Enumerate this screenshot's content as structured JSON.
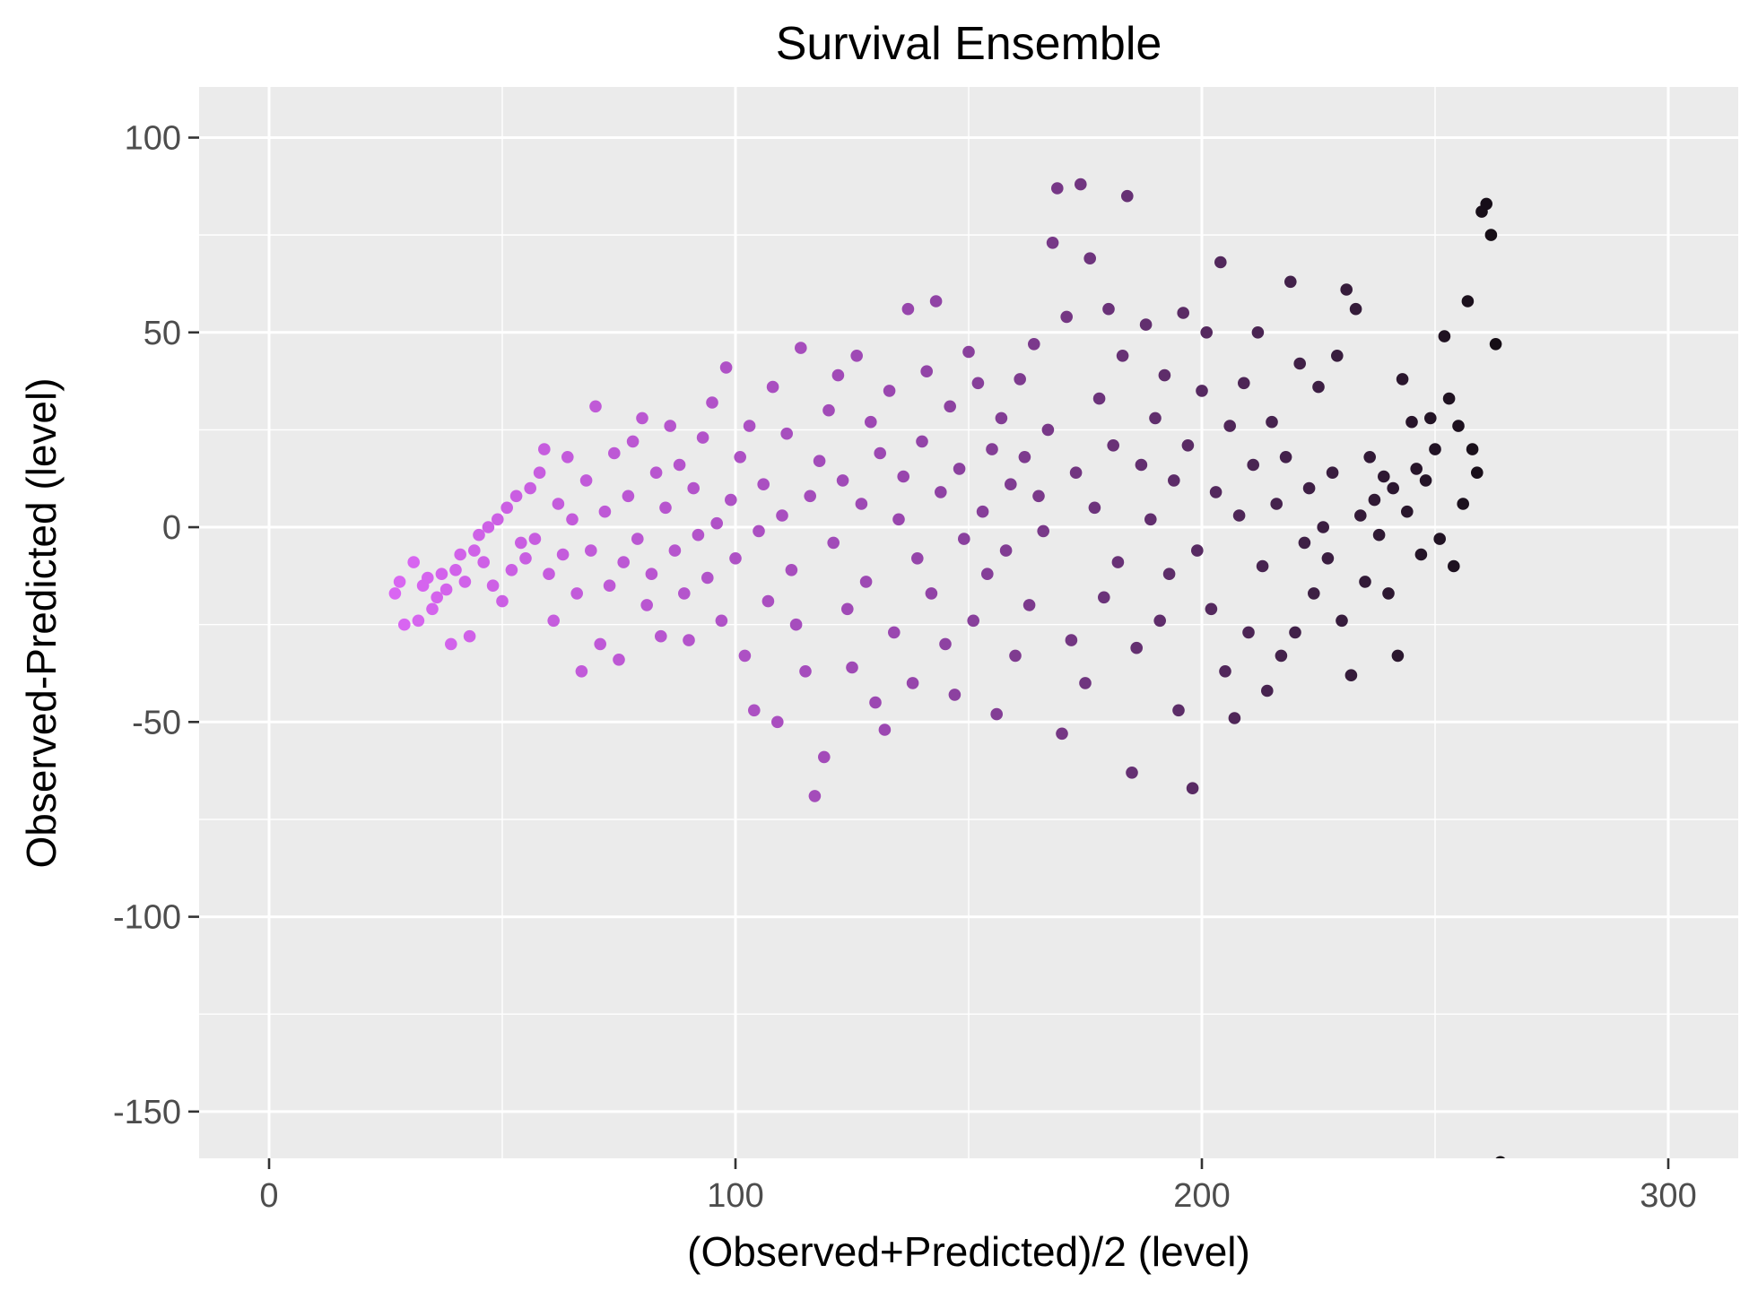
{
  "chart_data": {
    "type": "scatter",
    "title": "Survival Ensemble",
    "xlabel": "(Observed+Predicted)/2  (level)",
    "ylabel": "Observed-Predicted  (level)",
    "xlim": [
      -15,
      315
    ],
    "ylim": [
      -162,
      113
    ],
    "x_ticks": [
      0,
      100,
      200,
      300
    ],
    "y_ticks": [
      100,
      50,
      0,
      -50,
      -100,
      -150
    ],
    "x_tick_labels": [
      "0",
      "100",
      "200",
      "300"
    ],
    "y_tick_labels": [
      "100",
      "50",
      "0",
      "-50",
      "-100",
      "-150"
    ],
    "grid": true,
    "panel_background": "#ebebeb",
    "grid_color": "#ffffff",
    "color_gradient": {
      "low": "#d966f2",
      "mid": "#9a47b0",
      "high": "#140d14"
    },
    "series": [
      {
        "name": "points",
        "points": [
          [
            27,
            -17
          ],
          [
            28,
            -14
          ],
          [
            29,
            -25
          ],
          [
            31,
            -9
          ],
          [
            32,
            -24
          ],
          [
            33,
            -15
          ],
          [
            34,
            -13
          ],
          [
            35,
            -21
          ],
          [
            36,
            -18
          ],
          [
            37,
            -12
          ],
          [
            38,
            -16
          ],
          [
            39,
            -30
          ],
          [
            40,
            -11
          ],
          [
            41,
            -7
          ],
          [
            42,
            -14
          ],
          [
            43,
            -28
          ],
          [
            44,
            -6
          ],
          [
            45,
            -2
          ],
          [
            46,
            -9
          ],
          [
            47,
            0
          ],
          [
            48,
            -15
          ],
          [
            49,
            2
          ],
          [
            50,
            -19
          ],
          [
            51,
            5
          ],
          [
            52,
            -11
          ],
          [
            53,
            8
          ],
          [
            54,
            -4
          ],
          [
            55,
            -8
          ],
          [
            56,
            10
          ],
          [
            57,
            -3
          ],
          [
            58,
            14
          ],
          [
            59,
            20
          ],
          [
            60,
            -12
          ],
          [
            61,
            -24
          ],
          [
            62,
            6
          ],
          [
            63,
            -7
          ],
          [
            64,
            18
          ],
          [
            65,
            2
          ],
          [
            66,
            -17
          ],
          [
            67,
            -37
          ],
          [
            68,
            12
          ],
          [
            69,
            -6
          ],
          [
            70,
            31
          ],
          [
            71,
            -30
          ],
          [
            72,
            4
          ],
          [
            73,
            -15
          ],
          [
            74,
            19
          ],
          [
            75,
            -34
          ],
          [
            76,
            -9
          ],
          [
            77,
            8
          ],
          [
            78,
            22
          ],
          [
            79,
            -3
          ],
          [
            80,
            28
          ],
          [
            81,
            -20
          ],
          [
            82,
            -12
          ],
          [
            83,
            14
          ],
          [
            84,
            -28
          ],
          [
            85,
            5
          ],
          [
            86,
            26
          ],
          [
            87,
            -6
          ],
          [
            88,
            16
          ],
          [
            89,
            -17
          ],
          [
            90,
            -29
          ],
          [
            91,
            10
          ],
          [
            92,
            -2
          ],
          [
            93,
            23
          ],
          [
            94,
            -13
          ],
          [
            95,
            32
          ],
          [
            96,
            1
          ],
          [
            97,
            -24
          ],
          [
            98,
            41
          ],
          [
            99,
            7
          ],
          [
            100,
            -8
          ],
          [
            101,
            18
          ],
          [
            102,
            -33
          ],
          [
            103,
            26
          ],
          [
            104,
            -47
          ],
          [
            105,
            -1
          ],
          [
            106,
            11
          ],
          [
            107,
            -19
          ],
          [
            108,
            36
          ],
          [
            109,
            -50
          ],
          [
            110,
            3
          ],
          [
            111,
            24
          ],
          [
            112,
            -11
          ],
          [
            113,
            -25
          ],
          [
            114,
            46
          ],
          [
            115,
            -37
          ],
          [
            116,
            8
          ],
          [
            117,
            -69
          ],
          [
            118,
            17
          ],
          [
            119,
            -59
          ],
          [
            120,
            30
          ],
          [
            121,
            -4
          ],
          [
            122,
            39
          ],
          [
            123,
            12
          ],
          [
            124,
            -21
          ],
          [
            125,
            -36
          ],
          [
            126,
            44
          ],
          [
            127,
            6
          ],
          [
            128,
            -14
          ],
          [
            129,
            27
          ],
          [
            130,
            -45
          ],
          [
            131,
            19
          ],
          [
            132,
            -52
          ],
          [
            133,
            35
          ],
          [
            134,
            -27
          ],
          [
            135,
            2
          ],
          [
            136,
            13
          ],
          [
            137,
            56
          ],
          [
            138,
            -40
          ],
          [
            139,
            -8
          ],
          [
            140,
            22
          ],
          [
            141,
            40
          ],
          [
            142,
            -17
          ],
          [
            143,
            58
          ],
          [
            144,
            9
          ],
          [
            145,
            -30
          ],
          [
            146,
            31
          ],
          [
            147,
            -43
          ],
          [
            148,
            15
          ],
          [
            149,
            -3
          ],
          [
            150,
            45
          ],
          [
            151,
            -24
          ],
          [
            152,
            37
          ],
          [
            153,
            4
          ],
          [
            154,
            -12
          ],
          [
            155,
            20
          ],
          [
            156,
            -48
          ],
          [
            157,
            28
          ],
          [
            158,
            -6
          ],
          [
            159,
            11
          ],
          [
            160,
            -33
          ],
          [
            161,
            38
          ],
          [
            162,
            18
          ],
          [
            163,
            -20
          ],
          [
            164,
            47
          ],
          [
            165,
            8
          ],
          [
            166,
            -1
          ],
          [
            167,
            25
          ],
          [
            168,
            73
          ],
          [
            169,
            87
          ],
          [
            170,
            -53
          ],
          [
            171,
            54
          ],
          [
            172,
            -29
          ],
          [
            173,
            14
          ],
          [
            174,
            88
          ],
          [
            175,
            -40
          ],
          [
            176,
            69
          ],
          [
            177,
            5
          ],
          [
            178,
            33
          ],
          [
            179,
            -18
          ],
          [
            180,
            56
          ],
          [
            181,
            21
          ],
          [
            182,
            -9
          ],
          [
            183,
            44
          ],
          [
            184,
            85
          ],
          [
            185,
            -63
          ],
          [
            186,
            -31
          ],
          [
            187,
            16
          ],
          [
            188,
            52
          ],
          [
            189,
            2
          ],
          [
            190,
            28
          ],
          [
            191,
            -24
          ],
          [
            192,
            39
          ],
          [
            193,
            -12
          ],
          [
            194,
            12
          ],
          [
            195,
            -47
          ],
          [
            196,
            55
          ],
          [
            197,
            21
          ],
          [
            198,
            -67
          ],
          [
            199,
            -6
          ],
          [
            200,
            35
          ],
          [
            201,
            50
          ],
          [
            202,
            -21
          ],
          [
            203,
            9
          ],
          [
            204,
            68
          ],
          [
            205,
            -37
          ],
          [
            206,
            26
          ],
          [
            207,
            -49
          ],
          [
            208,
            3
          ],
          [
            209,
            37
          ],
          [
            210,
            -27
          ],
          [
            211,
            16
          ],
          [
            212,
            50
          ],
          [
            213,
            -10
          ],
          [
            214,
            -42
          ],
          [
            215,
            27
          ],
          [
            216,
            6
          ],
          [
            217,
            -33
          ],
          [
            218,
            18
          ],
          [
            219,
            63
          ],
          [
            220,
            -27
          ],
          [
            221,
            42
          ],
          [
            222,
            -4
          ],
          [
            223,
            10
          ],
          [
            224,
            -17
          ],
          [
            225,
            36
          ],
          [
            226,
            0
          ],
          [
            227,
            -8
          ],
          [
            228,
            14
          ],
          [
            229,
            44
          ],
          [
            230,
            -24
          ],
          [
            231,
            61
          ],
          [
            232,
            -38
          ],
          [
            233,
            56
          ],
          [
            234,
            3
          ],
          [
            235,
            -14
          ],
          [
            236,
            18
          ],
          [
            237,
            7
          ],
          [
            238,
            -2
          ],
          [
            239,
            13
          ],
          [
            240,
            -17
          ],
          [
            241,
            10
          ],
          [
            242,
            -33
          ],
          [
            243,
            38
          ],
          [
            244,
            4
          ],
          [
            245,
            27
          ],
          [
            246,
            15
          ],
          [
            247,
            -7
          ],
          [
            248,
            12
          ],
          [
            249,
            28
          ],
          [
            250,
            20
          ],
          [
            251,
            -3
          ],
          [
            252,
            49
          ],
          [
            253,
            33
          ],
          [
            254,
            -10
          ],
          [
            255,
            26
          ],
          [
            256,
            6
          ],
          [
            257,
            58
          ],
          [
            258,
            20
          ],
          [
            259,
            14
          ],
          [
            260,
            81
          ],
          [
            261,
            83
          ],
          [
            262,
            75
          ],
          [
            263,
            47
          ],
          [
            264,
            -163
          ]
        ]
      }
    ]
  }
}
